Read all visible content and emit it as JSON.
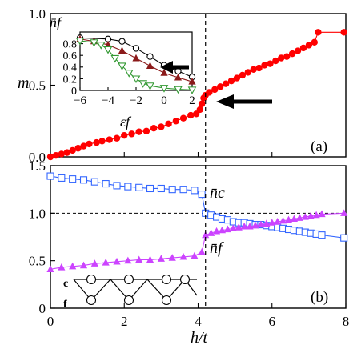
{
  "chart_data": [
    {
      "panel": "(a)",
      "type": "line",
      "ylabel": "m",
      "xlim": [
        0,
        8
      ],
      "ylim": [
        0,
        1
      ],
      "yticks": [
        "0.0",
        "0.5",
        "1.0"
      ],
      "series": [
        {
          "color": "#ff0000",
          "marker": "circle-filled",
          "x": [
            0.0,
            0.15,
            0.3,
            0.45,
            0.6,
            0.75,
            0.9,
            1.05,
            1.25,
            1.4,
            1.6,
            1.8,
            2.0,
            2.2,
            2.4,
            2.6,
            2.8,
            3.0,
            3.2,
            3.4,
            3.6,
            3.8,
            3.95,
            4.05,
            4.1,
            4.15,
            4.2,
            4.3,
            4.45,
            4.6,
            4.75,
            4.9,
            5.05,
            5.2,
            5.35,
            5.5,
            5.65,
            5.8,
            5.95,
            6.1,
            6.25,
            6.4,
            6.55,
            6.7,
            6.85,
            7.0,
            7.15,
            7.25,
            7.95
          ],
          "y": [
            0.0,
            0.01,
            0.02,
            0.03,
            0.045,
            0.06,
            0.075,
            0.09,
            0.1,
            0.11,
            0.12,
            0.13,
            0.15,
            0.16,
            0.175,
            0.18,
            0.2,
            0.21,
            0.23,
            0.25,
            0.27,
            0.29,
            0.3,
            0.33,
            0.37,
            0.41,
            0.43,
            0.45,
            0.47,
            0.49,
            0.51,
            0.53,
            0.55,
            0.57,
            0.59,
            0.61,
            0.62,
            0.64,
            0.65,
            0.67,
            0.69,
            0.7,
            0.72,
            0.74,
            0.76,
            0.78,
            0.8,
            0.87,
            0.87
          ]
        }
      ],
      "annotations": [
        "(a)"
      ]
    },
    {
      "panel": "inset",
      "type": "line",
      "ylabel": "n̄f",
      "xlabel": "εf",
      "xlim": [
        -6,
        2
      ],
      "ylim": [
        0,
        1
      ],
      "xticks": [
        "−6",
        "−4",
        "−2",
        "0",
        "2"
      ],
      "yticks": [
        "0",
        "0.2",
        "0.4",
        "0.6",
        "0.8"
      ],
      "series": [
        {
          "marker": "circle-open",
          "color": "#000000",
          "x": [
            -6,
            -4,
            -3,
            -2,
            -1,
            0,
            1,
            2
          ],
          "y": [
            0.9,
            0.88,
            0.84,
            0.72,
            0.58,
            0.43,
            0.33,
            0.23
          ]
        },
        {
          "marker": "triangle-filled",
          "color": "#8b1a1a",
          "x": [
            -6,
            -5,
            -4,
            -3,
            -2,
            -1,
            0,
            1,
            2
          ],
          "y": [
            0.88,
            0.84,
            0.78,
            0.68,
            0.55,
            0.42,
            0.3,
            0.22,
            0.15
          ]
        },
        {
          "marker": "triangle-down-open",
          "color": "#339933",
          "x": [
            -6,
            -5,
            -4.5,
            -4,
            -3.5,
            -3,
            -2.5,
            -2,
            -1.5,
            -1,
            0,
            1,
            2
          ],
          "y": [
            0.85,
            0.82,
            0.78,
            0.7,
            0.55,
            0.42,
            0.3,
            0.2,
            0.12,
            0.08,
            0.04,
            0.02,
            0.01
          ]
        }
      ]
    },
    {
      "panel": "(b)",
      "type": "line",
      "xlabel": "h/t",
      "xlim": [
        0,
        8
      ],
      "ylim": [
        0,
        1.5
      ],
      "xticks": [
        "0",
        "2",
        "4",
        "6",
        "8"
      ],
      "yticks": [
        "0",
        "0.5",
        "1.0",
        "1.5"
      ],
      "series": [
        {
          "name": "n̄c",
          "color": "#3366ff",
          "marker": "square-open",
          "x": [
            0.0,
            0.3,
            0.6,
            0.9,
            1.2,
            1.5,
            1.8,
            2.1,
            2.4,
            2.7,
            3.0,
            3.3,
            3.6,
            3.9,
            4.1,
            4.2,
            4.35,
            4.5,
            4.65,
            4.8,
            4.95,
            5.1,
            5.25,
            5.4,
            5.55,
            5.7,
            5.85,
            6.0,
            6.15,
            6.3,
            6.45,
            6.6,
            6.75,
            6.9,
            7.05,
            7.2,
            7.35,
            7.95
          ],
          "y": [
            1.39,
            1.37,
            1.36,
            1.35,
            1.33,
            1.31,
            1.29,
            1.28,
            1.27,
            1.26,
            1.26,
            1.25,
            1.25,
            1.24,
            1.2,
            1.0,
            0.98,
            0.96,
            0.94,
            0.93,
            0.91,
            0.9,
            0.9,
            0.89,
            0.88,
            0.88,
            0.87,
            0.86,
            0.85,
            0.84,
            0.83,
            0.82,
            0.81,
            0.8,
            0.79,
            0.78,
            0.77,
            0.74
          ]
        },
        {
          "name": "n̄f",
          "color": "#cc44ff",
          "marker": "triangle-filled",
          "x": [
            0.0,
            0.3,
            0.6,
            0.9,
            1.2,
            1.5,
            1.8,
            2.1,
            2.4,
            2.7,
            3.0,
            3.3,
            3.6,
            3.9,
            4.1,
            4.2,
            4.35,
            4.5,
            4.65,
            4.8,
            4.95,
            5.1,
            5.25,
            5.4,
            5.55,
            5.7,
            5.85,
            6.0,
            6.15,
            6.3,
            6.45,
            6.6,
            6.75,
            6.9,
            7.05,
            7.2,
            7.35,
            7.95
          ],
          "y": [
            0.41,
            0.43,
            0.44,
            0.45,
            0.47,
            0.48,
            0.49,
            0.5,
            0.51,
            0.51,
            0.52,
            0.53,
            0.54,
            0.55,
            0.59,
            0.77,
            0.79,
            0.81,
            0.82,
            0.83,
            0.84,
            0.85,
            0.86,
            0.86,
            0.87,
            0.88,
            0.89,
            0.9,
            0.91,
            0.92,
            0.93,
            0.94,
            0.95,
            0.96,
            0.97,
            0.98,
            0.99,
            1.0
          ]
        }
      ],
      "reference_line": {
        "y": 1.0,
        "style": "dashed"
      },
      "vertical_marker": {
        "x": 4.2,
        "style": "dashed"
      },
      "annotations": [
        "(b)",
        "c",
        "f"
      ]
    }
  ]
}
